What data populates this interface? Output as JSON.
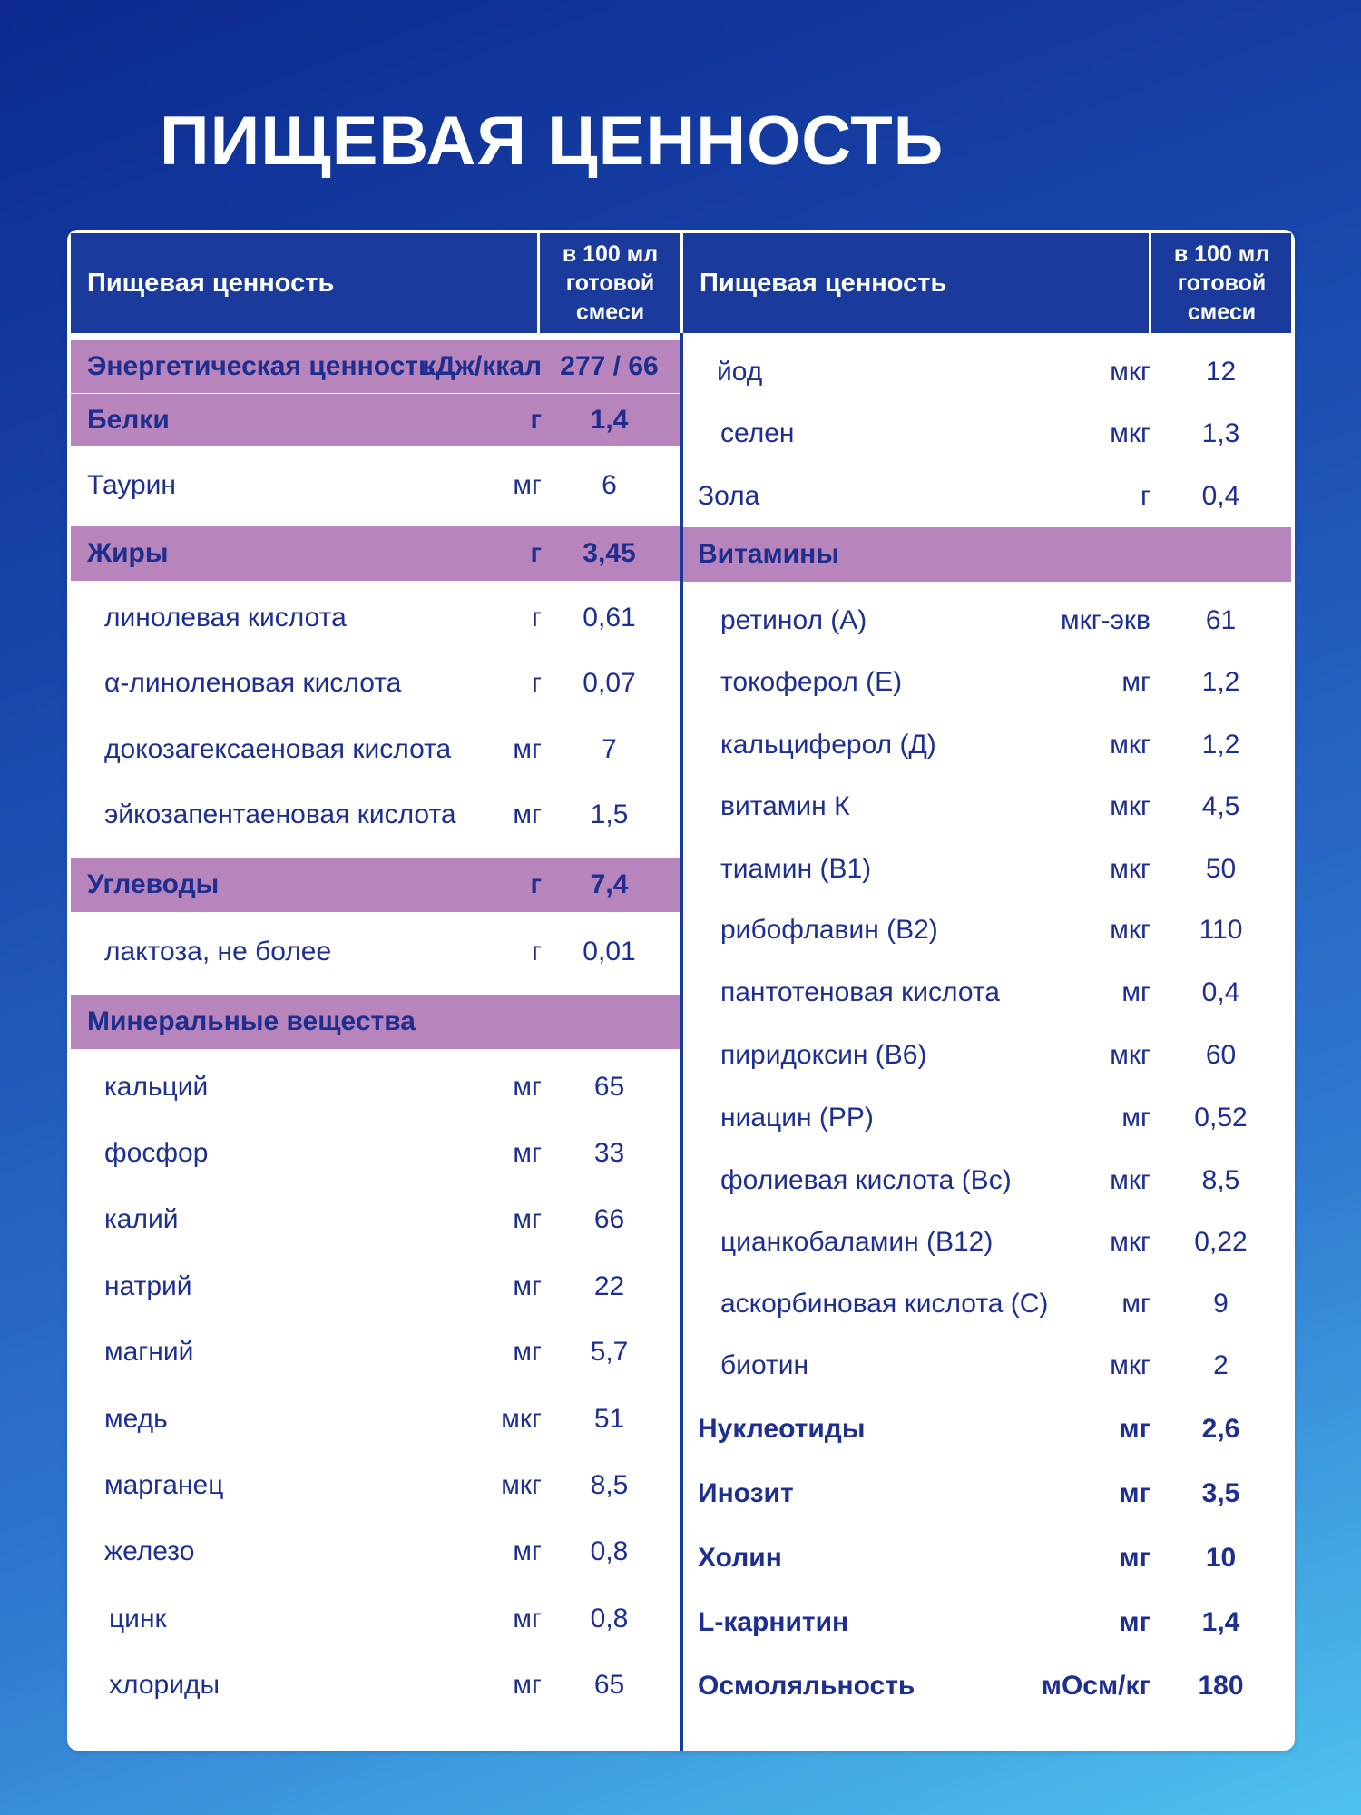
{
  "title": "ПИЩЕВАЯ ЦЕННОСТЬ",
  "colors": {
    "header_bg": "#1a3a9c",
    "shaded_row": "#b784bb",
    "text": "#1e2f8f"
  },
  "table": {
    "header": {
      "name": "Пищевая ценность",
      "amount": "в 100 мл\nготовой\nсмеси"
    },
    "left": [
      {
        "name": "Энергетическая ценность",
        "unit": "кДж/ккал",
        "value": "277 / 66",
        "style": "shaded-bold"
      },
      {
        "name": "Белки",
        "unit": "г",
        "value": "1,4",
        "style": "shaded-bold"
      },
      {
        "name": "Таурин",
        "unit": "мг",
        "value": "6",
        "style": "plain"
      },
      {
        "name": "Жиры",
        "unit": "г",
        "value": "3,45",
        "style": "shaded-bold"
      },
      {
        "name": "линолевая кислота",
        "unit": "г",
        "value": "0,61",
        "style": "sub"
      },
      {
        "name": "α-линоленовая кислота",
        "unit": "г",
        "value": "0,07",
        "style": "sub"
      },
      {
        "name": "докозагексаеновая кислота",
        "unit": "мг",
        "value": "7",
        "style": "sub"
      },
      {
        "name": "эйкозапентаеновая кислота",
        "unit": "мг",
        "value": "1,5",
        "style": "sub"
      },
      {
        "name": "Углеводы",
        "unit": "г",
        "value": "7,4",
        "style": "shaded-bold"
      },
      {
        "name": "лактоза, не более",
        "unit": "г",
        "value": "0,01",
        "style": "sub"
      },
      {
        "name": "Минеральные вещества",
        "unit": "",
        "value": "",
        "style": "shaded-bold"
      },
      {
        "name": "кальций",
        "unit": "мг",
        "value": "65",
        "style": "sub"
      },
      {
        "name": "фосфор",
        "unit": "мг",
        "value": "33",
        "style": "sub"
      },
      {
        "name": "калий",
        "unit": "мг",
        "value": "66",
        "style": "sub"
      },
      {
        "name": "натрий",
        "unit": "мг",
        "value": "22",
        "style": "sub"
      },
      {
        "name": "магний",
        "unit": "мг",
        "value": "5,7",
        "style": "sub"
      },
      {
        "name": "медь",
        "unit": "мкг",
        "value": "51",
        "style": "sub"
      },
      {
        "name": "марганец",
        "unit": "мкг",
        "value": "8,5",
        "style": "sub"
      },
      {
        "name": "железо",
        "unit": "мг",
        "value": "0,8",
        "style": "sub"
      },
      {
        "name": "цинк",
        "unit": "мг",
        "value": "0,8",
        "style": "sub2"
      },
      {
        "name": "хлориды",
        "unit": "мг",
        "value": "65",
        "style": "sub2"
      }
    ],
    "right": [
      {
        "name": "йод",
        "unit": "мкг",
        "value": "12",
        "style": "sub"
      },
      {
        "name": "селен",
        "unit": "мкг",
        "value": "1,3",
        "style": "sub2"
      },
      {
        "name": "Зола",
        "unit": "г",
        "value": "0,4",
        "style": "plain"
      },
      {
        "name": "Витамины",
        "unit": "",
        "value": "",
        "style": "shaded-bold"
      },
      {
        "name": "ретинол (А)",
        "unit": "мкг-экв",
        "value": "61",
        "style": "sub2"
      },
      {
        "name": "токоферол (Е)",
        "unit": "мг",
        "value": "1,2",
        "style": "sub2"
      },
      {
        "name": "кальциферол (Д)",
        "unit": "мкг",
        "value": "1,2",
        "style": "sub2"
      },
      {
        "name": "витамин К",
        "unit": "мкг",
        "value": "4,5",
        "style": "sub2"
      },
      {
        "name": "тиамин (В1)",
        "unit": "мкг",
        "value": "50",
        "style": "sub2"
      },
      {
        "name": "рибофлавин (В2)",
        "unit": "мкг",
        "value": "110",
        "style": "sub2"
      },
      {
        "name": "пантотеновая кислота",
        "unit": "мг",
        "value": "0,4",
        "style": "sub2"
      },
      {
        "name": "пиридоксин (В6)",
        "unit": "мкг",
        "value": "60",
        "style": "sub2"
      },
      {
        "name": "ниацин (РР)",
        "unit": "мг",
        "value": "0,52",
        "style": "sub2"
      },
      {
        "name": "фолиевая кислота (Вс)",
        "unit": "мкг",
        "value": "8,5",
        "style": "sub2"
      },
      {
        "name": "цианкобаламин (В12)",
        "unit": "мкг",
        "value": "0,22",
        "style": "sub2"
      },
      {
        "name": "аскорбиновая кислота (С)",
        "unit": "мг",
        "value": "9",
        "style": "sub2"
      },
      {
        "name": "биотин",
        "unit": "мкг",
        "value": "2",
        "style": "sub2"
      },
      {
        "name": "Нуклеотиды",
        "unit": "мг",
        "value": "2,6",
        "style": "bold"
      },
      {
        "name": "Инозит",
        "unit": "мг",
        "value": "3,5",
        "style": "bold"
      },
      {
        "name": "Холин",
        "unit": "мг",
        "value": "10",
        "style": "bold"
      },
      {
        "name": "L-карнитин",
        "unit": "мг",
        "value": "1,4",
        "style": "bold"
      },
      {
        "name": "Осмоляльность",
        "unit": "мОсм/кг",
        "value": "180",
        "style": "bold"
      }
    ]
  }
}
